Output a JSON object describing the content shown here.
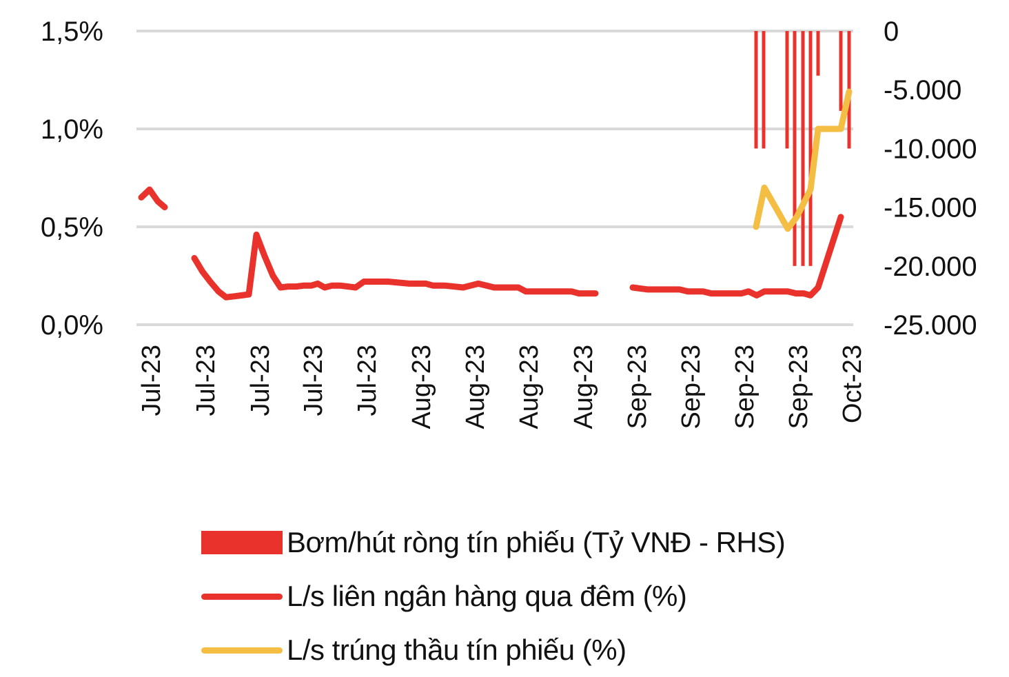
{
  "colors": {
    "bar": "#E8322B",
    "interbank": "#E8322B",
    "auction": "#F4BE44",
    "grid": "#D9D9D9"
  },
  "legend": [
    {
      "label": "Bơm/hút ròng tín phiếu (Tỷ VNĐ - RHS)",
      "kind": "bar",
      "color": "#E8322B"
    },
    {
      "label": "L/s liên ngân hàng qua đêm (%)",
      "kind": "line",
      "color": "#E8322B"
    },
    {
      "label": "L/s trúng thầu tín phiếu (%)",
      "kind": "line",
      "color": "#F4BE44"
    }
  ],
  "chart_data": {
    "type": "line",
    "title": "",
    "xlabel": "",
    "ylabel": "",
    "y2label": "",
    "ylim": [
      0,
      1.5
    ],
    "y2lim": [
      -25000,
      0
    ],
    "grid": true,
    "legend_position": "bottom",
    "y_ticks": [
      "1,5%",
      "1,0%",
      "0,5%",
      "0,0%"
    ],
    "y2_ticks": [
      "0",
      "-5.000",
      "-10.000",
      "-15.000",
      "-20.000",
      "-25.000"
    ],
    "x_tick_labels": [
      "Jul-23",
      "Jul-23",
      "Jul-23",
      "Jul-23",
      "Jul-23",
      "Aug-23",
      "Aug-23",
      "Aug-23",
      "Aug-23",
      "Sep-23",
      "Sep-23",
      "Sep-23",
      "Sep-23",
      "Oct-23"
    ],
    "series": [
      {
        "name": "L/s liên ngân hàng qua đêm (%)",
        "type": "line",
        "axis": "left",
        "color": "#E8322B",
        "segments": [
          [
            [
              205,
              0.65
            ],
            [
              217,
              0.69
            ],
            [
              229,
              0.63
            ],
            [
              239,
              0.6
            ]
          ],
          [
            [
              282,
              0.34
            ],
            [
              294,
              0.27
            ],
            [
              305,
              0.22
            ],
            [
              317,
              0.17
            ],
            [
              328,
              0.14
            ],
            [
              340,
              0.145
            ],
            [
              351,
              0.15
            ],
            [
              361,
              0.155
            ],
            [
              372,
              0.46
            ],
            [
              384,
              0.35
            ],
            [
              396,
              0.25
            ],
            [
              407,
              0.19
            ],
            [
              418,
              0.195
            ],
            [
              430,
              0.195
            ],
            [
              441,
              0.2
            ],
            [
              452,
              0.2
            ],
            [
              461,
              0.21
            ],
            [
              471,
              0.19
            ],
            [
              482,
              0.2
            ],
            [
              493,
              0.2
            ],
            [
              505,
              0.195
            ],
            [
              516,
              0.19
            ],
            [
              528,
              0.22
            ],
            [
              540,
              0.22
            ],
            [
              563,
              0.22
            ],
            [
              594,
              0.21
            ],
            [
              618,
              0.21
            ],
            [
              628,
              0.2
            ],
            [
              645,
              0.2
            ],
            [
              672,
              0.19
            ],
            [
              694,
              0.21
            ],
            [
              717,
              0.19
            ],
            [
              752,
              0.19
            ],
            [
              763,
              0.17
            ],
            [
              800,
              0.17
            ],
            [
              829,
              0.17
            ],
            [
              840,
              0.16
            ],
            [
              864,
              0.16
            ]
          ],
          [
            [
              918,
              0.19
            ],
            [
              940,
              0.18
            ],
            [
              986,
              0.18
            ],
            [
              998,
              0.17
            ],
            [
              1020,
              0.17
            ],
            [
              1032,
              0.16
            ],
            [
              1076,
              0.16
            ],
            [
              1086,
              0.17
            ],
            [
              1098,
              0.15
            ],
            [
              1109,
              0.17
            ],
            [
              1143,
              0.17
            ],
            [
              1155,
              0.16
            ],
            [
              1166,
              0.16
            ],
            [
              1176,
              0.15
            ],
            [
              1187,
              0.19
            ],
            [
              1220,
              0.55
            ]
          ]
        ]
      },
      {
        "name": "L/s trúng thầu tín phiếu (%)",
        "type": "line",
        "axis": "left",
        "color": "#F4BE44",
        "segments": [
          [
            [
              1097,
              0.5
            ],
            [
              1109,
              0.7
            ],
            [
              1143,
              0.49
            ],
            [
              1156,
              0.55
            ],
            [
              1176,
              0.69
            ],
            [
              1187,
              1.0
            ],
            [
              1220,
              1.0
            ],
            [
              1232,
              1.19
            ]
          ]
        ]
      },
      {
        "name": "Bơm/hút ròng tín phiếu (Tỷ VNĐ - RHS)",
        "type": "bar",
        "axis": "right",
        "color": "#E8322B",
        "bars": [
          {
            "x": 1097,
            "value": -10000
          },
          {
            "x": 1108,
            "value": -10000
          },
          {
            "x": 1142,
            "value": -10000
          },
          {
            "x": 1153,
            "value": -20000
          },
          {
            "x": 1165,
            "value": -20000
          },
          {
            "x": 1176,
            "value": -20000
          },
          {
            "x": 1187,
            "value": -3800
          },
          {
            "x": 1220,
            "value": -6800
          },
          {
            "x": 1232,
            "value": -10000
          }
        ]
      }
    ]
  }
}
